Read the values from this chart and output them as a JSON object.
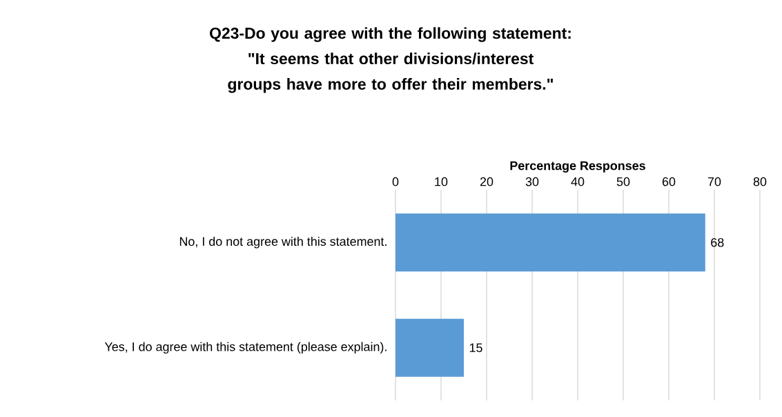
{
  "chart_data": {
    "type": "bar",
    "orientation": "horizontal",
    "title": "Q23-Do you agree with the following statement: \"It seems that other divisions/interest groups have more to offer their members.\"",
    "xlabel": "Percentage Responses",
    "categories": [
      "No, I do not agree with this statement.",
      "Yes, I do agree with this statement (please explain)."
    ],
    "values": [
      68,
      15
    ],
    "color": "#5b9bd5",
    "xlim": [
      0,
      80
    ],
    "xticks": [
      0,
      10,
      20,
      30,
      40,
      50,
      60,
      70,
      80
    ],
    "grid": "x",
    "data_labels": true
  }
}
